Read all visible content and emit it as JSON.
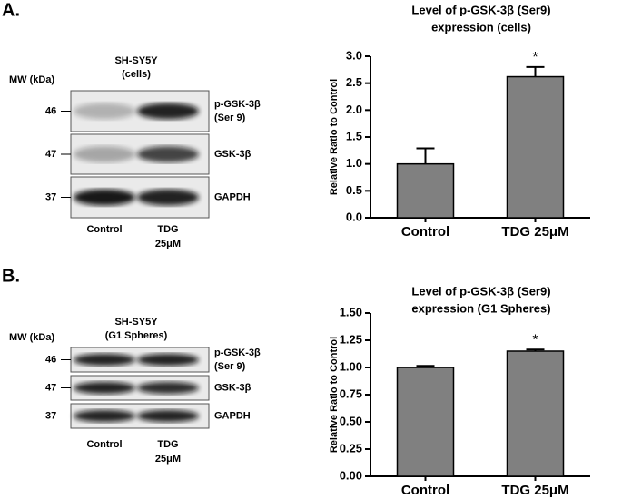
{
  "panels": [
    {
      "label": "A.",
      "blot": {
        "cell_line": "SH-SY5Y",
        "sample": "(cells)",
        "mw_label": "MW (kDa)",
        "rows": [
          {
            "mw": 46,
            "protein": [
              "p-GSK-3β",
              "(Ser 9)"
            ]
          },
          {
            "mw": 47,
            "protein": [
              "GSK-3β"
            ]
          },
          {
            "mw": 37,
            "protein": [
              "GAPDH"
            ]
          }
        ],
        "lanes": [
          [
            "Control"
          ],
          [
            "TDG",
            "25μM"
          ]
        ]
      }
    },
    {
      "label": "B.",
      "blot": {
        "cell_line": "SH-SY5Y",
        "sample": "(G1 Spheres)",
        "mw_label": "MW (kDa)",
        "rows": [
          {
            "mw": 46,
            "protein": [
              "p-GSK-3β",
              "(Ser 9)"
            ]
          },
          {
            "mw": 47,
            "protein": [
              "GSK-3β"
            ]
          },
          {
            "mw": 37,
            "protein": [
              "GAPDH"
            ]
          }
        ],
        "lanes": [
          [
            "Control"
          ],
          [
            "TDG",
            "25μM"
          ]
        ]
      }
    }
  ],
  "chart_data": [
    {
      "type": "bar",
      "title": [
        "Level of p-GSK-3β (Ser9)",
        "expression (cells)"
      ],
      "y_label": "Relative Ratio to Control",
      "categories": [
        "Control",
        "TDG 25μM"
      ],
      "values": [
        1.0,
        2.62
      ],
      "errors": [
        0.29,
        0.18
      ],
      "significance": [
        null,
        "*"
      ],
      "color": "#808080",
      "ylim": [
        0,
        3
      ],
      "yticks": [
        {
          "value": 0,
          "label": "0.0"
        },
        {
          "value": 0.5,
          "label": "0.5"
        },
        {
          "value": 1,
          "label": "1.0"
        },
        {
          "value": 1.5,
          "label": "1.5"
        },
        {
          "value": 2,
          "label": "2.0"
        },
        {
          "value": 2.5,
          "label": "2.5"
        },
        {
          "value": 3,
          "label": "3.0"
        }
      ]
    },
    {
      "type": "bar",
      "title": [
        "Level of p-GSK-3β (Ser9)",
        "expression (G1 Spheres)"
      ],
      "y_label": "Relative Ratio to Control",
      "categories": [
        "Control",
        "TDG 25μM"
      ],
      "values": [
        1.0,
        1.15
      ],
      "errors": [
        0.015,
        0.015
      ],
      "significance": [
        null,
        "*"
      ],
      "color": "#808080",
      "ylim": [
        0,
        1.5
      ],
      "yticks": [
        {
          "value": 0,
          "label": "0.00"
        },
        {
          "value": 0.25,
          "label": "0.25"
        },
        {
          "value": 0.5,
          "label": "0.50"
        },
        {
          "value": 0.75,
          "label": "0.75"
        },
        {
          "value": 1,
          "label": "1.00"
        },
        {
          "value": 1.25,
          "label": "1.25"
        },
        {
          "value": 1.5,
          "label": "1.50"
        }
      ]
    }
  ]
}
